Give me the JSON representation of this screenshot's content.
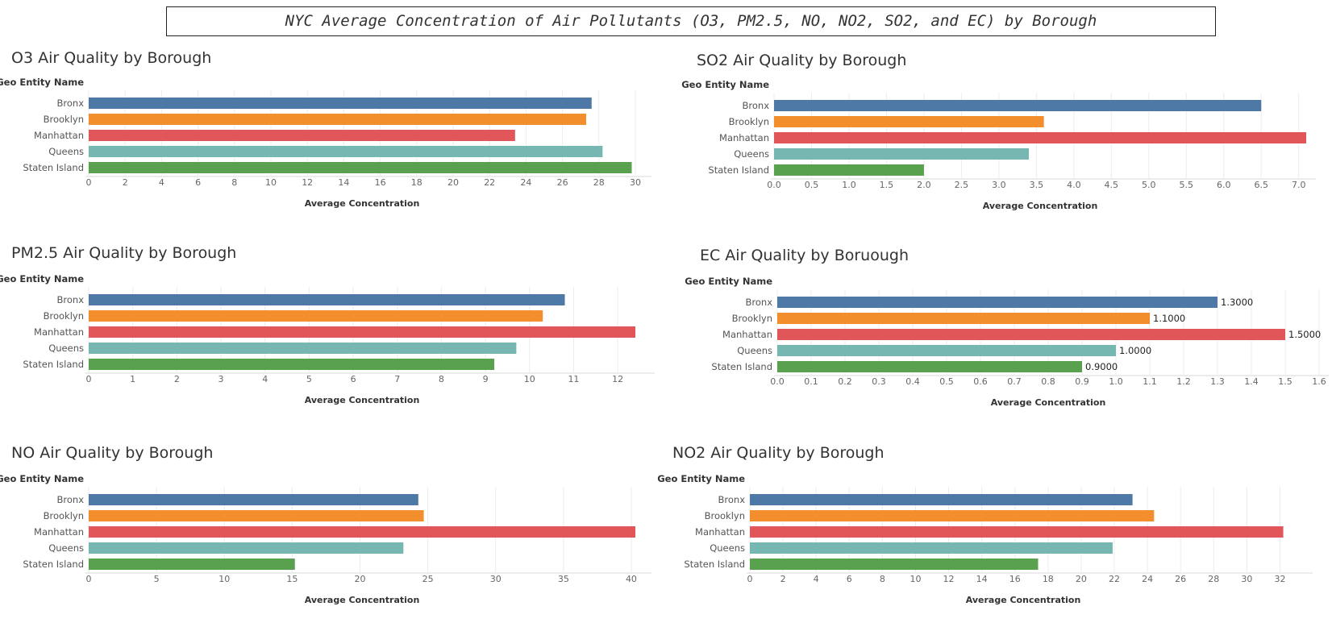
{
  "dashboard": {
    "title": "NYC Average Concentration of Air Pollutants (O3, PM2.5, NO, NO2, SO2, and EC) by Borough"
  },
  "colors": {
    "Bronx": "#4e79a7",
    "Brooklyn": "#f28e2b",
    "Manhattan": "#e15759",
    "Queens": "#76b7b2",
    "Staten Island": "#59a14f"
  },
  "chart_data": [
    {
      "id": "o3",
      "type": "bar",
      "orientation": "horizontal",
      "title": "O3 Air Quality by Borough",
      "row_header": "Geo Entity Name",
      "categories": [
        "Bronx",
        "Brooklyn",
        "Manhattan",
        "Queens",
        "Staten Island"
      ],
      "values": [
        27.6,
        27.3,
        23.4,
        28.2,
        29.8
      ],
      "xlabel": "Average Concentration",
      "xlim": [
        0,
        30
      ],
      "ticks": [
        0,
        2,
        4,
        6,
        8,
        10,
        12,
        14,
        16,
        18,
        20,
        22,
        24,
        26,
        28,
        30
      ],
      "tick_labels": [
        "0",
        "2",
        "4",
        "6",
        "8",
        "10",
        "12",
        "14",
        "16",
        "18",
        "20",
        "22",
        "24",
        "26",
        "28",
        "30"
      ],
      "data_labels": null,
      "grid": true
    },
    {
      "id": "so2",
      "type": "bar",
      "orientation": "horizontal",
      "title": "SO2 Air Quality by Borough",
      "row_header": "Geo Entity Name",
      "categories": [
        "Bronx",
        "Brooklyn",
        "Manhattan",
        "Queens",
        "Staten Island"
      ],
      "values": [
        6.5,
        3.6,
        7.1,
        3.4,
        2.0
      ],
      "xlabel": "Average Concentration",
      "xlim": [
        0,
        7.1
      ],
      "ticks": [
        0,
        0.5,
        1,
        1.5,
        2,
        2.5,
        3,
        3.5,
        4,
        4.5,
        5,
        5.5,
        6,
        6.5,
        7
      ],
      "tick_labels": [
        "0.0",
        "0.5",
        "1.0",
        "1.5",
        "2.0",
        "2.5",
        "3.0",
        "3.5",
        "4.0",
        "4.5",
        "5.0",
        "5.5",
        "6.0",
        "6.5",
        "7.0"
      ],
      "data_labels": null,
      "grid": true
    },
    {
      "id": "pm25",
      "type": "bar",
      "orientation": "horizontal",
      "title": "PM2.5 Air Quality by Borough",
      "row_header": "Geo Entity Name",
      "categories": [
        "Bronx",
        "Brooklyn",
        "Manhattan",
        "Queens",
        "Staten Island"
      ],
      "values": [
        10.8,
        10.3,
        12.4,
        9.7,
        9.2
      ],
      "xlabel": "Average Concentration",
      "xlim": [
        0,
        12.4
      ],
      "ticks": [
        0,
        1,
        2,
        3,
        4,
        5,
        6,
        7,
        8,
        9,
        10,
        11,
        12
      ],
      "tick_labels": [
        "0",
        "1",
        "2",
        "3",
        "4",
        "5",
        "6",
        "7",
        "8",
        "9",
        "10",
        "11",
        "12"
      ],
      "data_labels": null,
      "grid": true
    },
    {
      "id": "ec",
      "type": "bar",
      "orientation": "horizontal",
      "title": "EC Air Quality by Boruough",
      "row_header": "Geo Entity Name",
      "categories": [
        "Bronx",
        "Brooklyn",
        "Manhattan",
        "Queens",
        "Staten Island"
      ],
      "values": [
        1.3,
        1.1,
        1.5,
        1.0,
        0.9
      ],
      "xlabel": "Average Concentration",
      "xlim": [
        0,
        1.6
      ],
      "ticks": [
        0,
        0.1,
        0.2,
        0.3,
        0.4,
        0.5,
        0.6,
        0.7,
        0.8,
        0.9,
        1.0,
        1.1,
        1.2,
        1.3,
        1.4,
        1.5,
        1.6
      ],
      "tick_labels": [
        "0.0",
        "0.1",
        "0.2",
        "0.3",
        "0.4",
        "0.5",
        "0.6",
        "0.7",
        "0.8",
        "0.9",
        "1.0",
        "1.1",
        "1.2",
        "1.3",
        "1.4",
        "1.5",
        "1.6"
      ],
      "data_labels": [
        "1.3000",
        "1.1000",
        "1.5000",
        "1.0000",
        "0.9000"
      ],
      "grid": true
    },
    {
      "id": "no",
      "type": "bar",
      "orientation": "horizontal",
      "title": "NO Air Quality by Borough",
      "row_header": "Geo Entity Name",
      "categories": [
        "Bronx",
        "Brooklyn",
        "Manhattan",
        "Queens",
        "Staten Island"
      ],
      "values": [
        24.3,
        24.7,
        40.3,
        23.2,
        15.2
      ],
      "xlabel": "Average Concentration",
      "xlim": [
        0,
        40.3
      ],
      "ticks": [
        0,
        5,
        10,
        15,
        20,
        25,
        30,
        35,
        40
      ],
      "tick_labels": [
        "0",
        "5",
        "10",
        "15",
        "20",
        "25",
        "30",
        "35",
        "40"
      ],
      "data_labels": null,
      "grid": true
    },
    {
      "id": "no2",
      "type": "bar",
      "orientation": "horizontal",
      "title": "NO2 Air Quality by Borough",
      "row_header": "Geo Entity Name",
      "categories": [
        "Bronx",
        "Brooklyn",
        "Manhattan",
        "Queens",
        "Staten Island"
      ],
      "values": [
        23.1,
        24.4,
        32.2,
        21.9,
        17.4
      ],
      "xlabel": "Average Concentration",
      "xlim": [
        0,
        33
      ],
      "ticks": [
        0,
        2,
        4,
        6,
        8,
        10,
        12,
        14,
        16,
        18,
        20,
        22,
        24,
        26,
        28,
        30,
        32
      ],
      "tick_labels": [
        "0",
        "2",
        "4",
        "6",
        "8",
        "10",
        "12",
        "14",
        "16",
        "18",
        "20",
        "22",
        "24",
        "26",
        "28",
        "30",
        "32"
      ],
      "data_labels": null,
      "grid": true
    }
  ]
}
